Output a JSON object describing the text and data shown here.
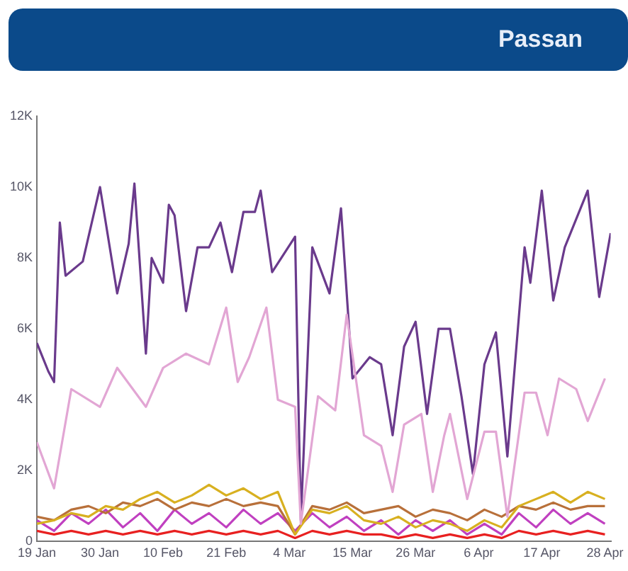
{
  "chart_data": {
    "type": "line",
    "title": "Passan",
    "xlim": [
      "--01-19",
      "--04-29"
    ],
    "xticks": [
      {
        "value": "--01-19",
        "label": "19 Jan"
      },
      {
        "value": "--01-30",
        "label": "30 Jan"
      },
      {
        "value": "--02-10",
        "label": "10 Feb"
      },
      {
        "value": "--02-21",
        "label": "21 Feb"
      },
      {
        "value": "--03-04",
        "label": "4 Mar"
      },
      {
        "value": "--03-15",
        "label": "15 Mar"
      },
      {
        "value": "--03-26",
        "label": "26 Mar"
      },
      {
        "value": "--04-06",
        "label": "6 Apr"
      },
      {
        "value": "--04-17",
        "label": "17 Apr"
      },
      {
        "value": "--04-28",
        "label": "28 Apr"
      }
    ],
    "ylim": [
      0,
      12000
    ],
    "yticks": [
      {
        "value": 0,
        "label": "0"
      },
      {
        "value": 2000,
        "label": "2K"
      },
      {
        "value": 4000,
        "label": "4K"
      },
      {
        "value": 6000,
        "label": "6K"
      },
      {
        "value": 8000,
        "label": "8K"
      },
      {
        "value": 10000,
        "label": "10K"
      },
      {
        "value": 12000,
        "label": "12K"
      }
    ],
    "grid": false,
    "legend": false,
    "marker": "none",
    "x": [
      "--01-19",
      "--01-22",
      "--01-25",
      "--01-28",
      "--01-31",
      "--02-03",
      "--02-06",
      "--02-09",
      "--02-12",
      "--02-15",
      "--02-18",
      "--02-21",
      "--02-24",
      "--02-27",
      "--03-02",
      "--03-05",
      "--03-08",
      "--03-11",
      "--03-14",
      "--03-17",
      "--03-20",
      "--03-23",
      "--03-26",
      "--03-29",
      "--04-01",
      "--04-04",
      "--04-07",
      "--04-10",
      "--04-13",
      "--04-16",
      "--04-19",
      "--04-22",
      "--04-25",
      "--04-28"
    ],
    "series": [
      {
        "color": "#e2a6d4",
        "x": [
          "--01-19",
          "--01-22",
          "--01-25",
          "--01-30",
          "--02-02",
          "--02-07",
          "--02-10",
          "--02-14",
          "--02-18",
          "--02-21",
          "--02-23",
          "--02-25",
          "--02-28",
          "--03-02",
          "--03-05",
          "--03-06",
          "--03-09",
          "--03-12",
          "--03-14",
          "--03-17",
          "--03-20",
          "--03-22",
          "--03-24",
          "--03-27",
          "--03-29",
          "--03-31",
          "--04-01",
          "--04-04",
          "--04-07",
          "--04-09",
          "--04-11",
          "--04-14",
          "--04-16",
          "--04-18",
          "--04-20",
          "--04-23",
          "--04-25",
          "--04-28"
        ],
        "values": [
          2800,
          1500,
          4300,
          3800,
          4900,
          3800,
          4900,
          5300,
          5000,
          6600,
          4500,
          5200,
          6600,
          4000,
          3800,
          500,
          4100,
          3700,
          6400,
          3000,
          2700,
          1400,
          3300,
          3600,
          1400,
          3000,
          3600,
          1200,
          3100,
          3100,
          700,
          4200,
          4200,
          3000,
          4600,
          4300,
          3400,
          4600
        ]
      },
      {
        "color": "#d8b020",
        "values": [
          500,
          600,
          800,
          700,
          1000,
          900,
          1200,
          1400,
          1100,
          1300,
          1600,
          1300,
          1500,
          1200,
          1400,
          200,
          900,
          800,
          1000,
          600,
          500,
          700,
          400,
          600,
          500,
          300,
          600,
          400,
          1000,
          1200,
          1400,
          1100,
          1400,
          1200
        ]
      },
      {
        "color": "#b8703a",
        "values": [
          700,
          600,
          900,
          1000,
          800,
          1100,
          1000,
          1200,
          900,
          1100,
          1000,
          1200,
          1000,
          1100,
          1000,
          200,
          1000,
          900,
          1100,
          800,
          900,
          1000,
          700,
          900,
          800,
          600,
          900,
          700,
          1000,
          900,
          1100,
          900,
          1000,
          1000
        ]
      },
      {
        "color": "#c040c0",
        "values": [
          600,
          300,
          800,
          500,
          900,
          400,
          800,
          300,
          900,
          500,
          800,
          400,
          900,
          500,
          800,
          300,
          800,
          400,
          700,
          300,
          600,
          200,
          600,
          300,
          600,
          200,
          500,
          200,
          800,
          400,
          900,
          500,
          800,
          500
        ]
      },
      {
        "color": "#e82020",
        "values": [
          300,
          200,
          300,
          200,
          300,
          200,
          300,
          200,
          300,
          200,
          300,
          200,
          300,
          200,
          300,
          100,
          300,
          200,
          300,
          200,
          200,
          100,
          200,
          100,
          200,
          100,
          200,
          100,
          300,
          200,
          300,
          200,
          300,
          200
        ]
      },
      {
        "color": "#6a3a8c",
        "x": [
          "--01-19",
          "--01-21",
          "--01-22",
          "--01-23",
          "--01-24",
          "--01-27",
          "--01-30",
          "--02-02",
          "--02-04",
          "--02-05",
          "--02-07",
          "--02-08",
          "--02-10",
          "--02-11",
          "--02-12",
          "--02-14",
          "--02-16",
          "--02-18",
          "--02-20",
          "--02-22",
          "--02-24",
          "--02-26",
          "--02-27",
          "--03-01",
          "--03-03",
          "--03-05",
          "--03-06",
          "--03-08",
          "--03-11",
          "--03-13",
          "--03-15",
          "--03-18",
          "--03-20",
          "--03-22",
          "--03-24",
          "--03-26",
          "--03-28",
          "--03-30",
          "--04-01",
          "--04-03",
          "--04-05",
          "--04-07",
          "--04-09",
          "--04-11",
          "--04-14",
          "--04-15",
          "--04-17",
          "--04-19",
          "--04-21",
          "--04-25",
          "--04-27",
          "--04-29"
        ],
        "values": [
          5600,
          4800,
          4500,
          9000,
          7500,
          7900,
          10000,
          7000,
          8400,
          10100,
          5300,
          8000,
          7300,
          9500,
          9200,
          6500,
          8300,
          8300,
          9000,
          7600,
          9300,
          9300,
          9900,
          7600,
          8100,
          8600,
          600,
          8300,
          7000,
          9400,
          4600,
          5200,
          5000,
          3000,
          5500,
          6200,
          3600,
          6000,
          6000,
          4100,
          1900,
          5000,
          5900,
          2400,
          8300,
          7300,
          9900,
          6800,
          8300,
          9900,
          6900,
          8700
        ]
      }
    ]
  }
}
